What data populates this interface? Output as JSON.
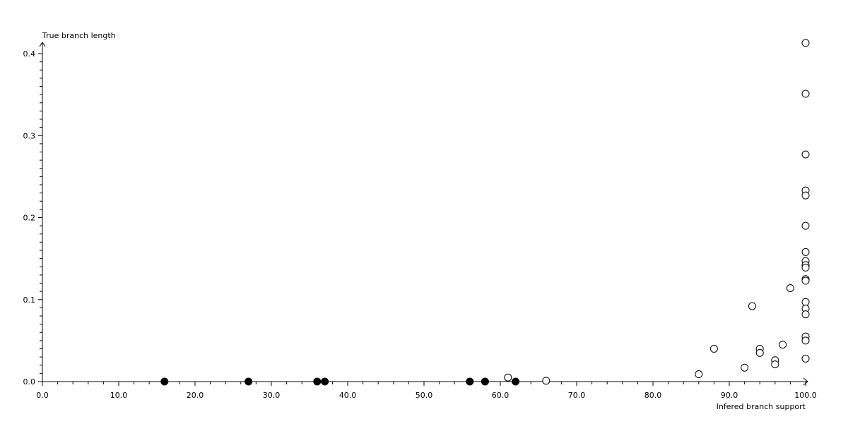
{
  "chart_data": {
    "type": "scatter",
    "xlabel": "Infered branch support",
    "ylabel": "True branch length",
    "xlim": [
      0,
      100
    ],
    "ylim": [
      0,
      0.4
    ],
    "grid": false,
    "x_ticks": [
      "0.0",
      "10.0",
      "20.0",
      "30.0",
      "40.0",
      "50.0",
      "60.0",
      "70.0",
      "80.0",
      "90.0",
      "100.0"
    ],
    "y_ticks": [
      "0.0",
      "0.1",
      "0.2",
      "0.3",
      "0.4"
    ],
    "series": [
      {
        "marker": "filled-circle",
        "color": "#000000",
        "points": [
          [
            16,
            0
          ],
          [
            27,
            0
          ],
          [
            36,
            0
          ],
          [
            37,
            0
          ],
          [
            56,
            0
          ],
          [
            58,
            0
          ],
          [
            62,
            0
          ]
        ]
      },
      {
        "marker": "open-circle",
        "color": "#000000",
        "points": [
          [
            100,
            0.413
          ],
          [
            100,
            0.351
          ],
          [
            100,
            0.277
          ],
          [
            100,
            0.233
          ],
          [
            100,
            0.227
          ],
          [
            100,
            0.19
          ],
          [
            100,
            0.158
          ],
          [
            100,
            0.147
          ],
          [
            100,
            0.142
          ],
          [
            100,
            0.139
          ],
          [
            100,
            0.125
          ],
          [
            100,
            0.123
          ],
          [
            100,
            0.097
          ],
          [
            100,
            0.089
          ],
          [
            100,
            0.082
          ],
          [
            100,
            0.055
          ],
          [
            100,
            0.05
          ],
          [
            100,
            0.028
          ],
          [
            98,
            0.114
          ],
          [
            93,
            0.092
          ],
          [
            88,
            0.04
          ],
          [
            94,
            0.04
          ],
          [
            94,
            0.035
          ],
          [
            97,
            0.045
          ],
          [
            96,
            0.026
          ],
          [
            96,
            0.021
          ],
          [
            92,
            0.017
          ],
          [
            86,
            0.009
          ],
          [
            61,
            0.005
          ],
          [
            66,
            0.001
          ]
        ]
      }
    ]
  }
}
